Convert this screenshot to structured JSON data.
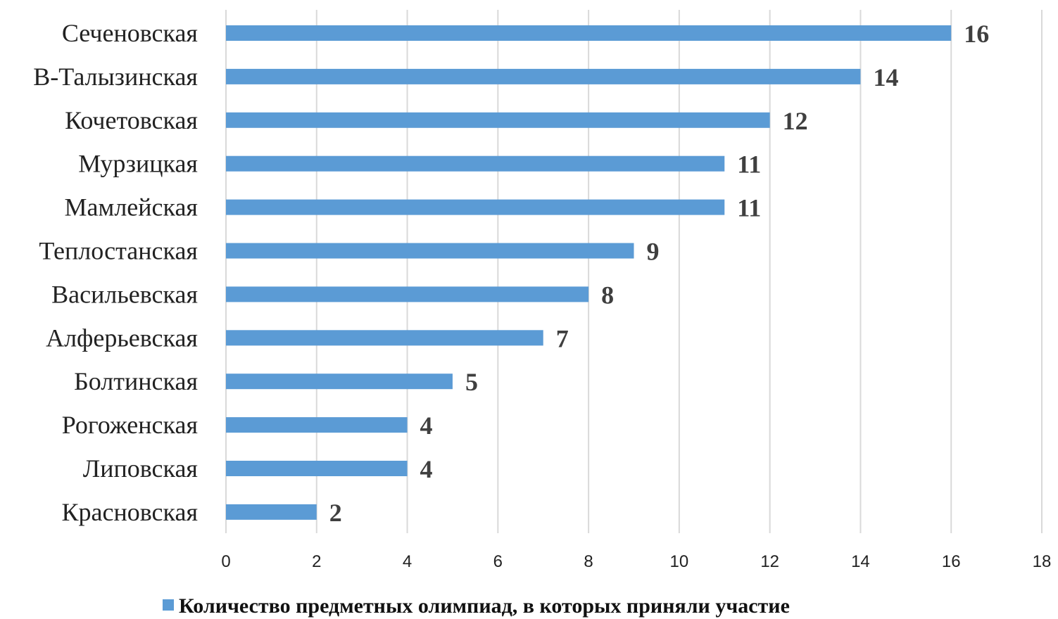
{
  "chart_data": {
    "type": "bar",
    "orientation": "horizontal",
    "categories": [
      "Сеченовская",
      "В-Талызинская",
      "Кочетовская",
      "Мурзицкая",
      "Мамлейская",
      "Теплостанская",
      "Васильевская",
      "Алферьевская",
      "Болтинская",
      "Рогоженская",
      "Липовская",
      "Красновская"
    ],
    "series": [
      {
        "name": "Количество предметных олимпиад, в которых приняли участие",
        "values": [
          16,
          14,
          12,
          11,
          11,
          9,
          8,
          7,
          5,
          4,
          4,
          2
        ],
        "color": "#5b9bd5"
      }
    ],
    "data_labels": [
      "16",
      "14",
      "12",
      "11",
      "11",
      "9",
      "8",
      "7",
      "5",
      "4",
      "4",
      "2"
    ],
    "x_ticks": [
      "0",
      "2",
      "4",
      "6",
      "8",
      "10",
      "12",
      "14",
      "16",
      "18"
    ],
    "xlim": [
      0,
      18
    ],
    "grid": "vertical",
    "legend_position": "bottom",
    "title": "",
    "xlabel": "",
    "ylabel": ""
  },
  "colors": {
    "bar": "#5b9bd5",
    "grid": "#d9d9d9",
    "data_label": "#3f3f3f"
  }
}
